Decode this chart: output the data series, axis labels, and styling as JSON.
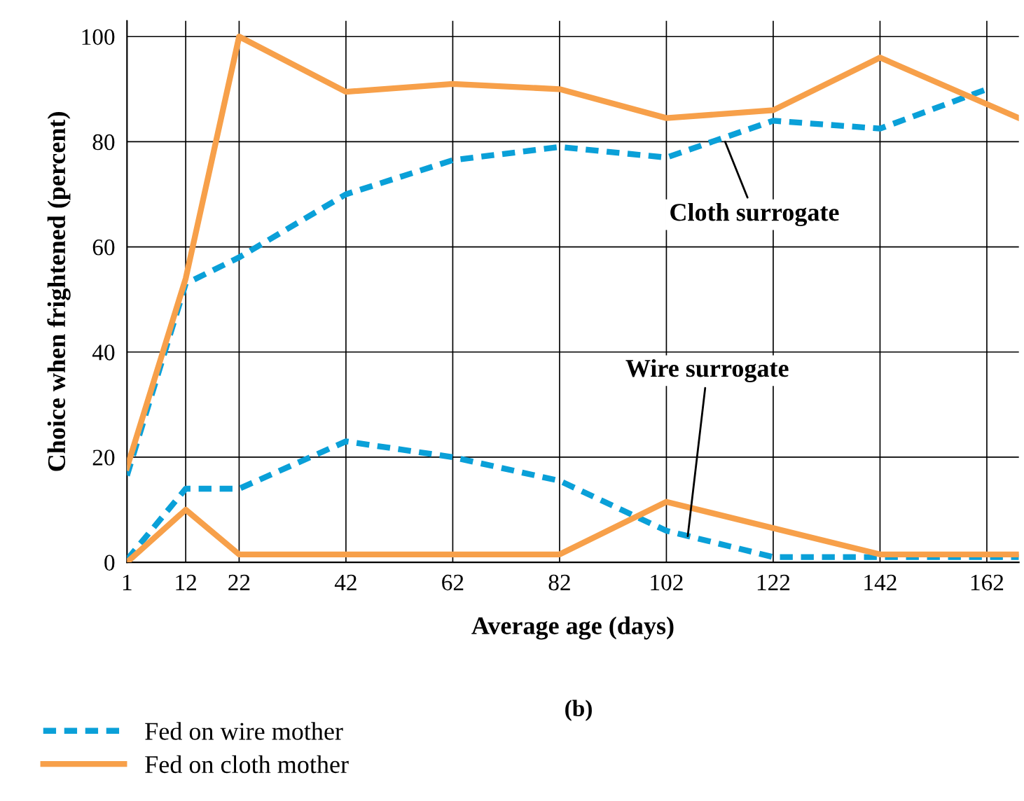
{
  "chart_data": {
    "type": "line",
    "xlabel": "Average age (days)",
    "ylabel": "Choice when frightened (percent)",
    "xlim": [
      1,
      168
    ],
    "xticks": [
      1,
      12,
      22,
      42,
      62,
      82,
      102,
      122,
      142,
      162
    ],
    "ylim": [
      0,
      103
    ],
    "yticks": [
      0,
      20,
      40,
      60,
      80,
      100
    ],
    "grid": true,
    "legend": "bottom left",
    "series": [
      {
        "name": "Fed on wire mother",
        "color": "#0aa0d8",
        "line_style": "dashed",
        "x": [
          1,
          12,
          22,
          42,
          62,
          82,
          102,
          122,
          142,
          162
        ],
        "values": [
          16.5,
          53,
          58,
          70,
          76.5,
          79,
          77,
          84,
          82.5,
          90
        ]
      },
      {
        "name": "Fed on cloth mother",
        "color": "#f7a04a",
        "line_style": "solid",
        "x": [
          1,
          12,
          22,
          42,
          62,
          82,
          102,
          122,
          142,
          168
        ],
        "values": [
          18,
          54,
          100,
          89.5,
          91,
          90,
          84.5,
          86,
          96,
          84.5
        ]
      },
      {
        "color": "#0aa0d8",
        "line_style": "dashed",
        "x": [
          1,
          12,
          22,
          42,
          62,
          82,
          102,
          122,
          142,
          162,
          168
        ],
        "values": [
          0.5,
          14,
          14,
          23,
          20,
          15.5,
          6,
          1,
          1,
          1,
          1
        ]
      },
      {
        "color": "#f7a04a",
        "line_style": "solid",
        "x": [
          1,
          12,
          22,
          42,
          62,
          82,
          102,
          142,
          168
        ],
        "values": [
          0,
          10,
          1.5,
          1.5,
          1.5,
          1.5,
          11.5,
          1.5,
          1.5
        ]
      }
    ],
    "annotations": [
      {
        "text": "Cloth surrogate",
        "x": 113,
        "y": 80
      },
      {
        "text": "Wire surrogate",
        "x": 106,
        "y": 5
      },
      "(b)"
    ]
  }
}
